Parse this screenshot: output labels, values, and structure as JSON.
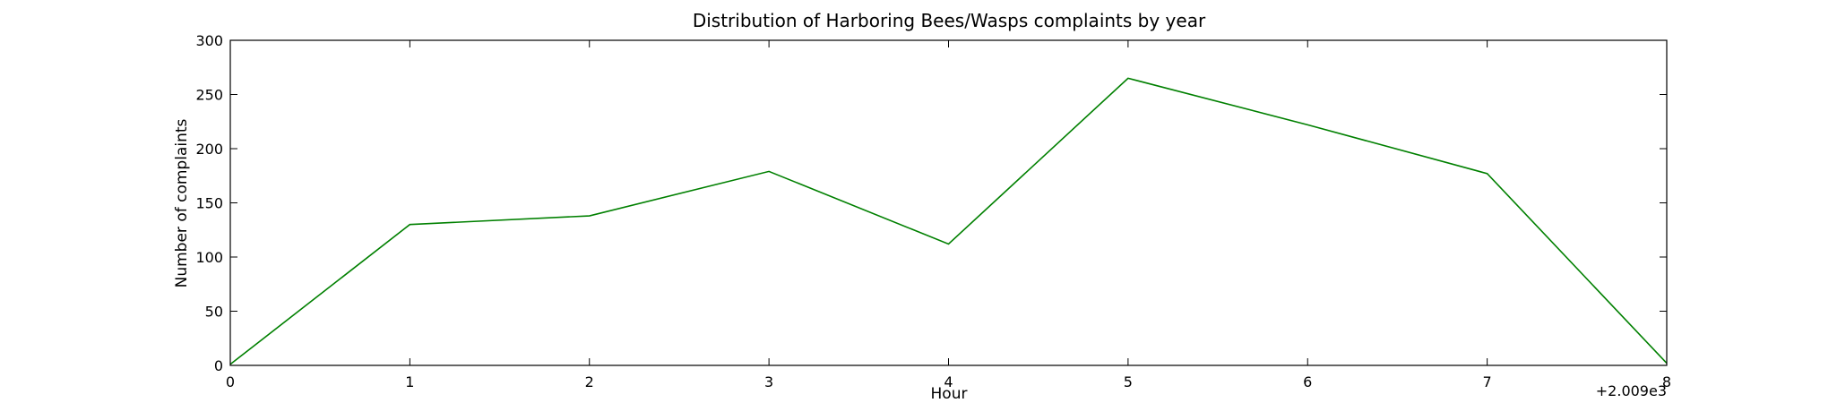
{
  "chart_data": {
    "type": "line",
    "title": "Distribution of  Harboring Bees/Wasps complaints by year",
    "xlabel": "Hour",
    "ylabel": "Number of complaints",
    "x_offset_label": "+2.009e3",
    "x": [
      0,
      1,
      2,
      3,
      4,
      5,
      6,
      7,
      8
    ],
    "x_tick_labels": [
      "0",
      "1",
      "2",
      "3",
      "4",
      "5",
      "6",
      "7",
      "8"
    ],
    "y_ticks": [
      0,
      50,
      100,
      150,
      200,
      250,
      300
    ],
    "y_tick_labels": [
      "0",
      "50",
      "100",
      "150",
      "200",
      "250",
      "300"
    ],
    "xlim": [
      0,
      8
    ],
    "ylim": [
      0,
      300
    ],
    "grid": false,
    "series": [
      {
        "values": [
          1,
          130,
          138,
          179,
          112,
          265,
          222,
          177,
          2
        ],
        "color": "#008000"
      }
    ]
  }
}
